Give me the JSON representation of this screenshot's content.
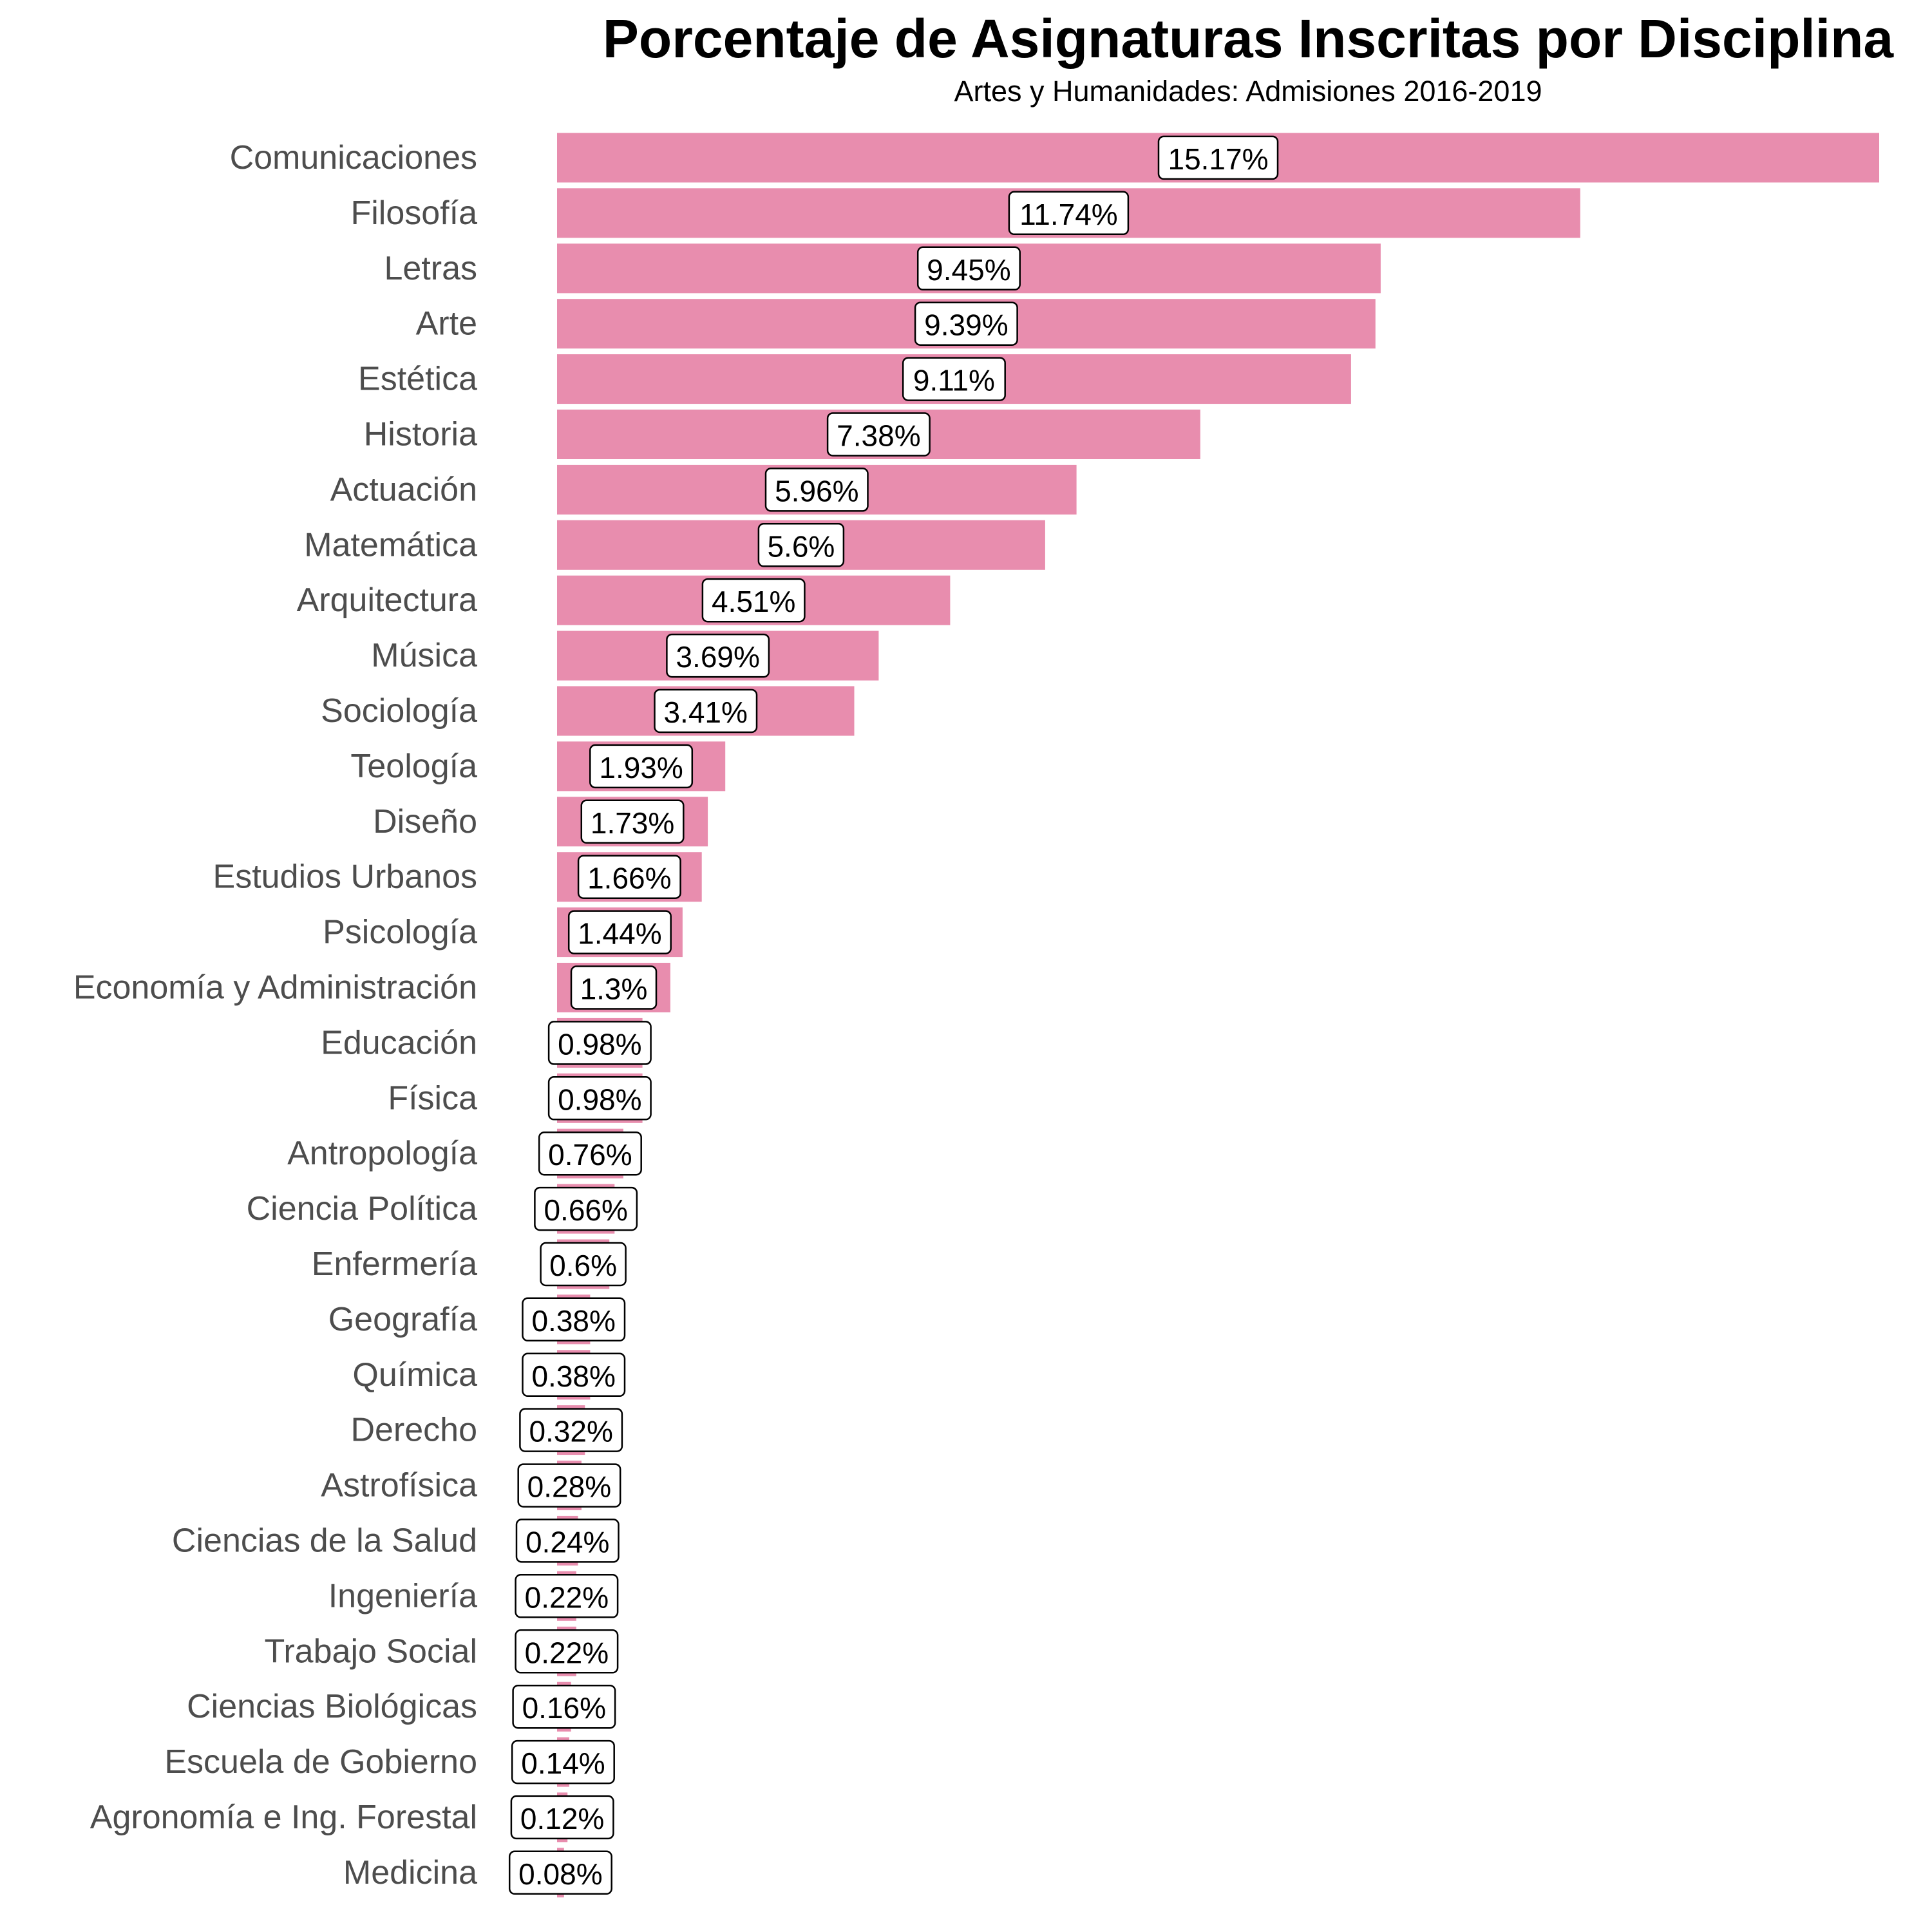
{
  "chart_data": {
    "type": "bar",
    "orientation": "horizontal",
    "title": "Porcentaje de Asignaturas Inscritas por Disciplina",
    "subtitle": "Artes y Humanidades: Admisiones 2016-2019",
    "xlabel": "",
    "ylabel": "",
    "xlim": [
      0,
      15.17
    ],
    "grid": false,
    "legend": "none",
    "bar_color": "#E88DAE",
    "categories": [
      "Comunicaciones",
      "Filosofía",
      "Letras",
      "Arte",
      "Estética",
      "Historia",
      "Actuación",
      "Matemática",
      "Arquitectura",
      "Música",
      "Sociología",
      "Teología",
      "Diseño",
      "Estudios Urbanos",
      "Psicología",
      "Economía y Administración",
      "Educación",
      "Física",
      "Antropología",
      "Ciencia Política",
      "Enfermería",
      "Geografía",
      "Química",
      "Derecho",
      "Astrofísica",
      "Ciencias de la Salud",
      "Ingeniería",
      "Trabajo Social",
      "Ciencias Biológicas",
      "Escuela de Gobierno",
      "Agronomía e Ing. Forestal",
      "Medicina"
    ],
    "values": [
      15.17,
      11.74,
      9.45,
      9.39,
      9.11,
      7.38,
      5.96,
      5.6,
      4.51,
      3.69,
      3.41,
      1.93,
      1.73,
      1.66,
      1.44,
      1.3,
      0.98,
      0.98,
      0.76,
      0.66,
      0.6,
      0.38,
      0.38,
      0.32,
      0.28,
      0.24,
      0.22,
      0.22,
      0.16,
      0.14,
      0.12,
      0.08
    ],
    "data_labels": [
      "15.17%",
      "11.74%",
      "9.45%",
      "9.39%",
      "9.11%",
      "7.38%",
      "5.96%",
      "5.6%",
      "4.51%",
      "3.69%",
      "3.41%",
      "1.93%",
      "1.73%",
      "1.66%",
      "1.44%",
      "1.3%",
      "0.98%",
      "0.98%",
      "0.76%",
      "0.66%",
      "0.6%",
      "0.38%",
      "0.38%",
      "0.32%",
      "0.28%",
      "0.24%",
      "0.22%",
      "0.22%",
      "0.16%",
      "0.14%",
      "0.12%",
      "0.08%"
    ]
  }
}
